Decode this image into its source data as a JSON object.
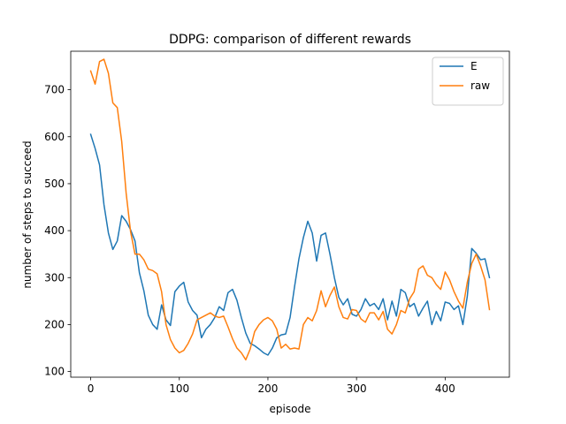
{
  "chart_data": {
    "type": "line",
    "title": "DDPG: comparison of different rewards",
    "xlabel": "episode",
    "ylabel": "number of steps to succeed",
    "xlim": [
      -22.5,
      472.5
    ],
    "ylim": [
      88,
      782
    ],
    "x_ticks": [
      0,
      100,
      200,
      300,
      400
    ],
    "y_ticks": [
      100,
      200,
      300,
      400,
      500,
      600,
      700
    ],
    "legend": {
      "placement": "top-right"
    },
    "grid": false,
    "series": [
      {
        "name": "E",
        "color": "#1f77b4",
        "x": [
          0,
          5,
          10,
          15,
          20,
          25,
          30,
          35,
          40,
          45,
          50,
          55,
          60,
          65,
          70,
          75,
          80,
          85,
          90,
          95,
          100,
          105,
          110,
          115,
          120,
          125,
          130,
          135,
          140,
          145,
          150,
          155,
          160,
          165,
          170,
          175,
          180,
          185,
          190,
          195,
          200,
          205,
          210,
          215,
          220,
          225,
          230,
          235,
          240,
          245,
          250,
          255,
          260,
          265,
          270,
          275,
          280,
          285,
          290,
          295,
          300,
          305,
          310,
          315,
          320,
          325,
          330,
          335,
          340,
          345,
          350,
          355,
          360,
          365,
          370,
          375,
          380,
          385,
          390,
          395,
          400,
          405,
          410,
          415,
          420,
          425,
          430,
          435,
          440,
          445,
          450
        ],
        "y": [
          605,
          575,
          540,
          455,
          395,
          360,
          378,
          432,
          420,
          402,
          378,
          310,
          272,
          220,
          200,
          190,
          242,
          210,
          198,
          270,
          282,
          290,
          248,
          230,
          220,
          172,
          190,
          200,
          215,
          238,
          230,
          268,
          275,
          252,
          215,
          182,
          160,
          155,
          148,
          140,
          135,
          150,
          172,
          178,
          180,
          215,
          280,
          340,
          385,
          420,
          395,
          335,
          390,
          395,
          350,
          300,
          258,
          242,
          255,
          222,
          218,
          232,
          255,
          240,
          245,
          232,
          255,
          210,
          250,
          218,
          275,
          268,
          238,
          245,
          218,
          235,
          250,
          200,
          228,
          208,
          248,
          245,
          232,
          240,
          200,
          260,
          362,
          352,
          338,
          340,
          300
        ]
      },
      {
        "name": "raw",
        "color": "#ff7f0e",
        "x": [
          0,
          5,
          10,
          15,
          20,
          25,
          30,
          35,
          40,
          45,
          50,
          55,
          60,
          65,
          70,
          75,
          80,
          85,
          90,
          95,
          100,
          105,
          110,
          115,
          120,
          125,
          130,
          135,
          140,
          145,
          150,
          155,
          160,
          165,
          170,
          175,
          180,
          185,
          190,
          195,
          200,
          205,
          210,
          215,
          220,
          225,
          230,
          235,
          240,
          245,
          250,
          255,
          260,
          265,
          270,
          275,
          280,
          285,
          290,
          295,
          300,
          305,
          310,
          315,
          320,
          325,
          330,
          335,
          340,
          345,
          350,
          355,
          360,
          365,
          370,
          375,
          380,
          385,
          390,
          395,
          400,
          405,
          410,
          415,
          420,
          425,
          430,
          435,
          440,
          445,
          450
        ],
        "y": [
          740,
          712,
          760,
          765,
          735,
          672,
          662,
          590,
          480,
          398,
          350,
          350,
          338,
          318,
          315,
          308,
          270,
          200,
          168,
          150,
          140,
          145,
          160,
          180,
          210,
          215,
          220,
          225,
          218,
          215,
          218,
          195,
          170,
          150,
          140,
          125,
          148,
          185,
          200,
          210,
          215,
          208,
          190,
          150,
          158,
          148,
          150,
          148,
          200,
          215,
          208,
          230,
          272,
          238,
          262,
          280,
          238,
          215,
          212,
          232,
          230,
          212,
          205,
          225,
          225,
          210,
          228,
          190,
          180,
          200,
          230,
          225,
          255,
          270,
          318,
          325,
          305,
          300,
          285,
          275,
          312,
          295,
          270,
          250,
          235,
          290,
          330,
          350,
          325,
          295,
          232
        ]
      }
    ]
  }
}
